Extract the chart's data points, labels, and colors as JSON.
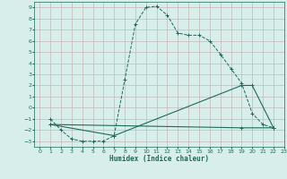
{
  "xlabel": "Humidex (Indice chaleur)",
  "xlim": [
    -0.5,
    23
  ],
  "ylim": [
    -3.5,
    9.5
  ],
  "xticks": [
    0,
    1,
    2,
    3,
    4,
    5,
    6,
    7,
    8,
    9,
    10,
    11,
    12,
    13,
    14,
    15,
    16,
    17,
    18,
    19,
    20,
    21,
    22,
    23
  ],
  "yticks": [
    -3,
    -2,
    -1,
    0,
    1,
    2,
    3,
    4,
    5,
    6,
    7,
    8,
    9
  ],
  "bg_color": "#d8eeea",
  "grid_color_major": "#c4b8b8",
  "line_color": "#1a6b5a",
  "line1_x": [
    1,
    2,
    3,
    4,
    5,
    6,
    7,
    8,
    9,
    10,
    11,
    12,
    13,
    14,
    15,
    16,
    17,
    18,
    19,
    20,
    21,
    22
  ],
  "line1_y": [
    -1,
    -2,
    -2.8,
    -3,
    -3,
    -3,
    -2.5,
    2.5,
    7.5,
    9,
    9.1,
    8.3,
    6.7,
    6.5,
    6.5,
    6,
    4.8,
    3.5,
    2.2,
    -0.5,
    -1.5,
    -1.8
  ],
  "line2_x": [
    1,
    7,
    19,
    20,
    22
  ],
  "line2_y": [
    -1.5,
    -2.5,
    2,
    2,
    -1.8
  ],
  "line3_x": [
    1,
    19,
    22
  ],
  "line3_y": [
    -1.5,
    -1.8,
    -1.8
  ]
}
